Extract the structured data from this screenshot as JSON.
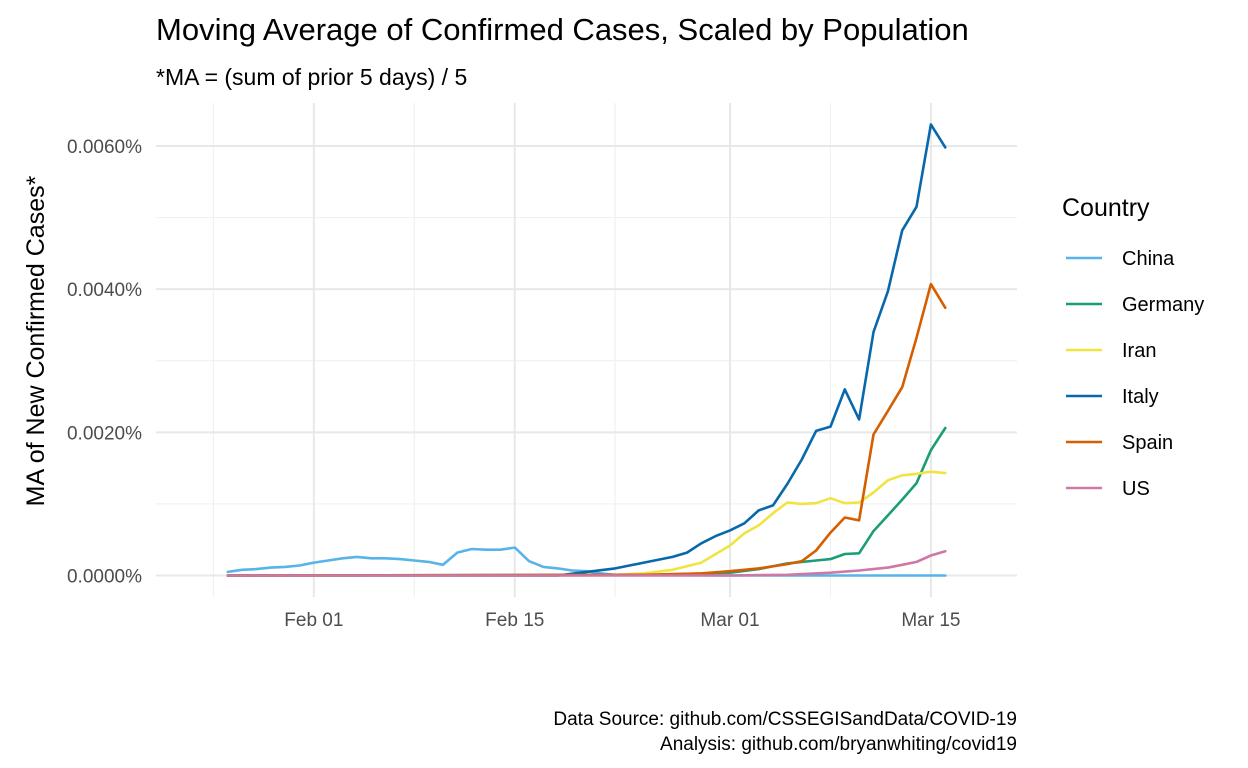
{
  "chart_data": {
    "type": "line",
    "title": "Moving Average of Confirmed Cases, Scaled by Population",
    "subtitle": "*MA = (sum of prior 5 days) / 5",
    "xlabel": "",
    "ylabel": "MA of New Confirmed Cases*",
    "x_ticks": [
      "Feb 01",
      "Feb 15",
      "Mar 01",
      "Mar 15"
    ],
    "y_ticks": [
      "0.0000%",
      "0.0020%",
      "0.0040%",
      "0.0060%"
    ],
    "y_tick_values": [
      0,
      0.002,
      0.004,
      0.006
    ],
    "xlim": [
      "2020-01-21",
      "2020-03-21"
    ],
    "ylim": [
      -0.0003,
      0.0066
    ],
    "grid": true,
    "legend": {
      "title": "Country",
      "placement": "right"
    },
    "caption": [
      "Data Source: github.com/CSSEGISandData/COVID-19",
      "Analysis: github.com/bryanwhiting/covid19"
    ],
    "series": [
      {
        "name": "China",
        "color": "#56B4E9",
        "x": [
          "2020-01-26",
          "2020-01-27",
          "2020-01-28",
          "2020-01-29",
          "2020-01-30",
          "2020-01-31",
          "2020-02-01",
          "2020-02-02",
          "2020-02-03",
          "2020-02-04",
          "2020-02-05",
          "2020-02-06",
          "2020-02-07",
          "2020-02-08",
          "2020-02-09",
          "2020-02-10",
          "2020-02-11",
          "2020-02-12",
          "2020-02-13",
          "2020-02-14",
          "2020-02-15",
          "2020-02-16",
          "2020-02-17",
          "2020-02-18",
          "2020-02-19",
          "2020-02-20",
          "2020-02-21",
          "2020-02-22",
          "2020-03-01",
          "2020-03-16"
        ],
        "y": [
          5e-05,
          8e-05,
          9e-05,
          0.00011,
          0.00012,
          0.00014,
          0.00018,
          0.00021,
          0.00024,
          0.00026,
          0.00024,
          0.00024,
          0.00023,
          0.00021,
          0.00019,
          0.00015,
          0.00032,
          0.00037,
          0.00036,
          0.00036,
          0.00039,
          0.0002,
          0.00012,
          0.0001,
          7e-05,
          6e-05,
          3e-05,
          1e-05,
          0.0,
          0.0
        ]
      },
      {
        "name": "Germany",
        "color": "#1B9E77",
        "x": [
          "2020-01-26",
          "2020-02-25",
          "2020-03-01",
          "2020-03-03",
          "2020-03-05",
          "2020-03-07",
          "2020-03-08",
          "2020-03-09",
          "2020-03-10",
          "2020-03-11",
          "2020-03-12",
          "2020-03-13",
          "2020-03-14",
          "2020-03-15",
          "2020-03-16"
        ],
        "y": [
          0.0,
          1e-05,
          4e-05,
          9e-05,
          0.00017,
          0.00021,
          0.00023,
          0.0003,
          0.00031,
          0.00062,
          0.00084,
          0.00106,
          0.00129,
          0.00175,
          0.00206
        ]
      },
      {
        "name": "Iran",
        "color": "#F0E442",
        "x": [
          "2020-01-26",
          "2020-02-20",
          "2020-02-22",
          "2020-02-24",
          "2020-02-26",
          "2020-02-28",
          "2020-03-01",
          "2020-03-02",
          "2020-03-03",
          "2020-03-04",
          "2020-03-05",
          "2020-03-06",
          "2020-03-07",
          "2020-03-08",
          "2020-03-09",
          "2020-03-10",
          "2020-03-11",
          "2020-03-12",
          "2020-03-13",
          "2020-03-14",
          "2020-03-15",
          "2020-03-16"
        ],
        "y": [
          0.0,
          0.0,
          1e-05,
          3e-05,
          8e-05,
          0.00018,
          0.00042,
          0.00059,
          0.0007,
          0.00087,
          0.00102,
          0.001,
          0.00101,
          0.00108,
          0.00101,
          0.00102,
          0.00116,
          0.00133,
          0.0014,
          0.00142,
          0.00145,
          0.00143
        ]
      },
      {
        "name": "Italy",
        "color": "#0868AC",
        "x": [
          "2020-01-26",
          "2020-02-18",
          "2020-02-20",
          "2020-02-22",
          "2020-02-24",
          "2020-02-26",
          "2020-02-27",
          "2020-02-28",
          "2020-02-29",
          "2020-03-01",
          "2020-03-02",
          "2020-03-03",
          "2020-03-04",
          "2020-03-05",
          "2020-03-06",
          "2020-03-07",
          "2020-03-08",
          "2020-03-09",
          "2020-03-10",
          "2020-03-11",
          "2020-03-12",
          "2020-03-13",
          "2020-03-14",
          "2020-03-15",
          "2020-03-16"
        ],
        "y": [
          0.0,
          0.0,
          5e-05,
          0.0001,
          0.00018,
          0.00026,
          0.00032,
          0.00045,
          0.00055,
          0.00063,
          0.00073,
          0.00091,
          0.00098,
          0.00128,
          0.00162,
          0.00202,
          0.00208,
          0.0026,
          0.00218,
          0.0034,
          0.00397,
          0.00482,
          0.00515,
          0.0063,
          0.00598
        ]
      },
      {
        "name": "Spain",
        "color": "#D55E00",
        "x": [
          "2020-01-26",
          "2020-02-24",
          "2020-02-28",
          "2020-03-01",
          "2020-03-03",
          "2020-03-05",
          "2020-03-06",
          "2020-03-07",
          "2020-03-08",
          "2020-03-09",
          "2020-03-10",
          "2020-03-11",
          "2020-03-12",
          "2020-03-13",
          "2020-03-14",
          "2020-03-15",
          "2020-03-16"
        ],
        "y": [
          0.0,
          1e-05,
          3e-05,
          6e-05,
          0.0001,
          0.00016,
          0.0002,
          0.00035,
          0.0006,
          0.00081,
          0.00077,
          0.00197,
          0.0023,
          0.00263,
          0.00332,
          0.00407,
          0.00374
        ]
      },
      {
        "name": "US",
        "color": "#CC79A7",
        "x": [
          "2020-01-26",
          "2020-03-01",
          "2020-03-05",
          "2020-03-08",
          "2020-03-10",
          "2020-03-12",
          "2020-03-13",
          "2020-03-14",
          "2020-03-15",
          "2020-03-16"
        ],
        "y": [
          0.0,
          0.0,
          1e-05,
          4e-05,
          7e-05,
          0.00011,
          0.00015,
          0.00019,
          0.00028,
          0.00034
        ]
      }
    ]
  }
}
